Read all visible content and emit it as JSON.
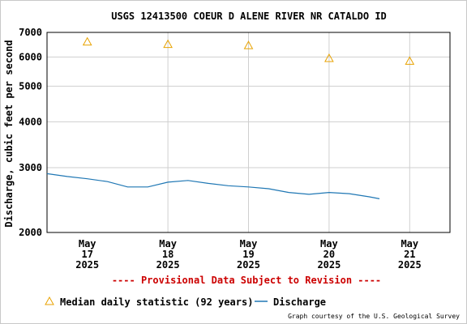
{
  "chart_data": {
    "type": "line",
    "title": "USGS 12413500 COEUR D ALENE RIVER NR CATALDO ID",
    "ylabel": "Discharge, cubic feet per second",
    "yscale": "log",
    "ylim": [
      2000,
      7000
    ],
    "y_ticks": [
      "7000",
      "6000",
      "5000",
      "4000",
      "3000",
      "2000"
    ],
    "y_tick_values": [
      7000,
      6000,
      5000,
      4000,
      3000,
      2000
    ],
    "x_ticks": [
      {
        "month": "May",
        "day": "17",
        "year": "2025"
      },
      {
        "month": "May",
        "day": "18",
        "year": "2025"
      },
      {
        "month": "May",
        "day": "19",
        "year": "2025"
      },
      {
        "month": "May",
        "day": "20",
        "year": "2025"
      },
      {
        "month": "May",
        "day": "21",
        "year": "2025"
      }
    ],
    "xlim": [
      "2025-05-16 12:00",
      "2025-05-21 12:00"
    ],
    "grid": true,
    "series": [
      {
        "name": "Median daily statistic (92 years)",
        "kind": "marker",
        "color": "#e8a200",
        "points": [
          {
            "x": "2025-05-17",
            "y": 6600
          },
          {
            "x": "2025-05-18",
            "y": 6500
          },
          {
            "x": "2025-05-19",
            "y": 6450
          },
          {
            "x": "2025-05-20",
            "y": 5950
          },
          {
            "x": "2025-05-21",
            "y": 5850
          }
        ]
      },
      {
        "name": "Discharge",
        "kind": "line",
        "color": "#1f77b4",
        "points": [
          {
            "x": "2025-05-16 12:00",
            "y": 2890
          },
          {
            "x": "2025-05-16 18:00",
            "y": 2840
          },
          {
            "x": "2025-05-17 00:00",
            "y": 2800
          },
          {
            "x": "2025-05-17 06:00",
            "y": 2750
          },
          {
            "x": "2025-05-17 12:00",
            "y": 2660
          },
          {
            "x": "2025-05-17 18:00",
            "y": 2660
          },
          {
            "x": "2025-05-18 00:00",
            "y": 2740
          },
          {
            "x": "2025-05-18 06:00",
            "y": 2770
          },
          {
            "x": "2025-05-18 12:00",
            "y": 2720
          },
          {
            "x": "2025-05-18 18:00",
            "y": 2680
          },
          {
            "x": "2025-05-19 00:00",
            "y": 2660
          },
          {
            "x": "2025-05-19 06:00",
            "y": 2630
          },
          {
            "x": "2025-05-19 12:00",
            "y": 2570
          },
          {
            "x": "2025-05-19 18:00",
            "y": 2540
          },
          {
            "x": "2025-05-20 00:00",
            "y": 2570
          },
          {
            "x": "2025-05-20 06:00",
            "y": 2550
          },
          {
            "x": "2025-05-20 12:00",
            "y": 2500
          },
          {
            "x": "2025-05-20 15:00",
            "y": 2470
          }
        ]
      }
    ]
  },
  "footer": {
    "provisional": "---- Provisional Data Subject to Revision ----",
    "provisional_color": "#cc0000",
    "legend_median": "Median daily statistic (92 years)",
    "legend_discharge": "Discharge",
    "credit": "Graph courtesy of the U.S. Geological Survey"
  }
}
